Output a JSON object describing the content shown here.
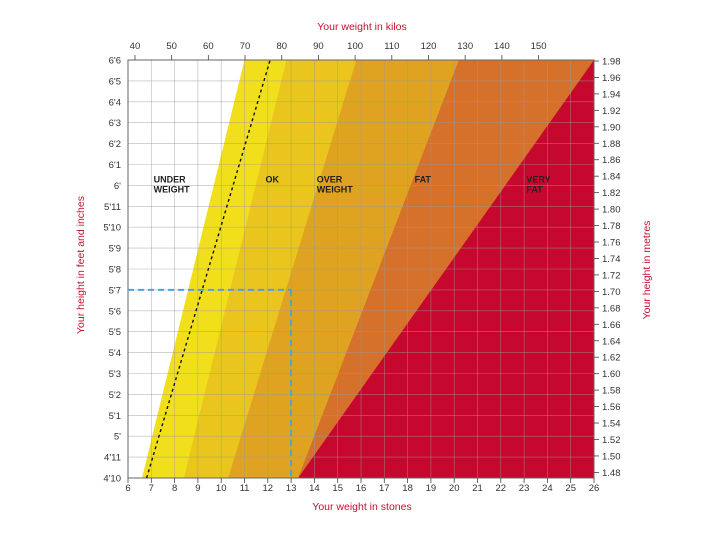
{
  "chart_data": {
    "type": "area",
    "title": "",
    "xlabel_top": "Your weight in kilos",
    "xlabel_bottom": "Your weight in stones",
    "ylabel_left": "Your height in feet and inches",
    "ylabel_right": "Your height in metres",
    "kilo_ticks": [
      "40",
      "50",
      "60",
      "70",
      "80",
      "90",
      "100",
      "110",
      "120",
      "130",
      "140",
      "150"
    ],
    "stone_ticks": [
      "6",
      "7",
      "8",
      "9",
      "10",
      "11",
      "12",
      "13",
      "14",
      "15",
      "16",
      "17",
      "18",
      "19",
      "20",
      "21",
      "22",
      "23",
      "24",
      "25",
      "26"
    ],
    "feet_ticks": [
      "6'6",
      "6'5",
      "6'4",
      "6'3",
      "6'2",
      "6'1",
      "6'",
      "5'11",
      "5'10",
      "5'9",
      "5'8",
      "5'7",
      "5'6",
      "5'5",
      "5'4",
      "5'3",
      "5'2",
      "5'1",
      "5'",
      "4'11",
      "4'10"
    ],
    "metre_ticks": [
      "1.98",
      "1.96",
      "1.94",
      "1.92",
      "1.90",
      "1.88",
      "1.86",
      "1.84",
      "1.82",
      "1.80",
      "1.78",
      "1.76",
      "1.74",
      "1.72",
      "1.70",
      "1.68",
      "1.66",
      "1.64",
      "1.62",
      "1.60",
      "1.58",
      "1.56",
      "1.54",
      "1.52",
      "1.50",
      "1.48"
    ],
    "xlim_stones": [
      6,
      26
    ],
    "ylim_inches": [
      58,
      78
    ],
    "zones": [
      {
        "label": "UNDER WEIGHT",
        "color": "#ffffff"
      },
      {
        "label": "OK",
        "color": "#f2df1c"
      },
      {
        "label": "",
        "color": "#e9c51e"
      },
      {
        "label": "OVER WEIGHT",
        "color": "#e0a321"
      },
      {
        "label": "FAT",
        "color": "#d5712a"
      },
      {
        "label": "VERY FAT",
        "color": "#c6082e"
      }
    ],
    "zone_boundaries_stones": [
      {
        "bottom": 6.6,
        "top": 11.0
      },
      {
        "bottom": 8.4,
        "top": 12.8
      },
      {
        "bottom": 10.3,
        "top": 15.8
      },
      {
        "bottom": 13.3,
        "top": 20.2
      },
      {
        "bottom": 13.3,
        "top": 26.0
      }
    ],
    "reference_line_stones": {
      "bottom": 6.8,
      "top": 12.1
    },
    "example_point": {
      "height": "5'7",
      "weight_stones": 13
    },
    "grid": true,
    "colors": {
      "axis_title": "#c4102e",
      "grid": "#9a9a9a",
      "example_marker": "#4aa3df",
      "reference_line": "#111111"
    }
  }
}
